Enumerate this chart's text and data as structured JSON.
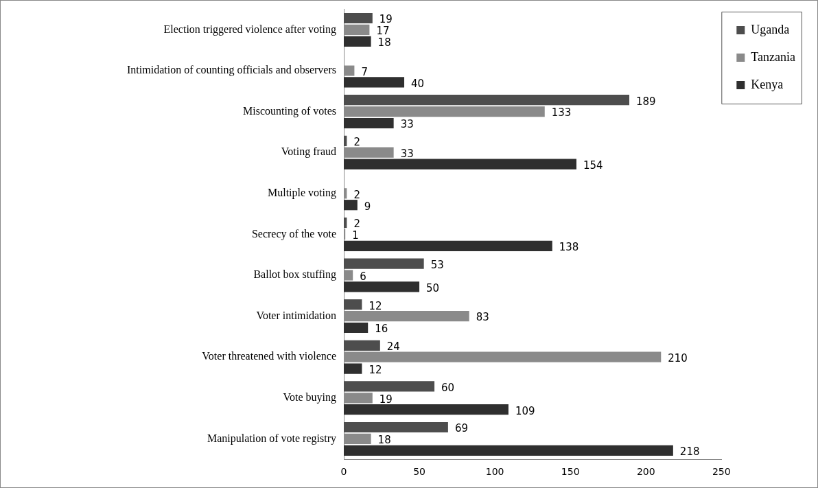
{
  "chart_data": {
    "type": "bar",
    "orientation": "horizontal",
    "categories": [
      "Election triggered violence after voting",
      "Intimidation of counting officials and observers",
      "Miscounting of votes",
      "Voting fraud",
      "Multiple voting",
      "Secrecy of the vote",
      "Ballot box stuffing",
      "Voter intimidation",
      "Voter threatened with violence",
      "Vote buying",
      "Manipulation of vote registry"
    ],
    "series": [
      {
        "name": "Uganda",
        "color": "#4d4d4d",
        "values": [
          19,
          null,
          189,
          2,
          null,
          2,
          53,
          12,
          24,
          60,
          69
        ]
      },
      {
        "name": "Tanzania",
        "color": "#8a8a8a",
        "values": [
          17,
          7,
          133,
          33,
          2,
          1,
          6,
          83,
          210,
          19,
          18
        ]
      },
      {
        "name": "Kenya",
        "color": "#2f2f2f",
        "values": [
          18,
          40,
          33,
          154,
          9,
          138,
          50,
          16,
          12,
          109,
          218
        ]
      }
    ],
    "xlim": [
      0,
      250
    ],
    "xticks": [
      0,
      50,
      100,
      150,
      200,
      250
    ],
    "grid": false,
    "legend": "top right",
    "data_labels": true
  }
}
